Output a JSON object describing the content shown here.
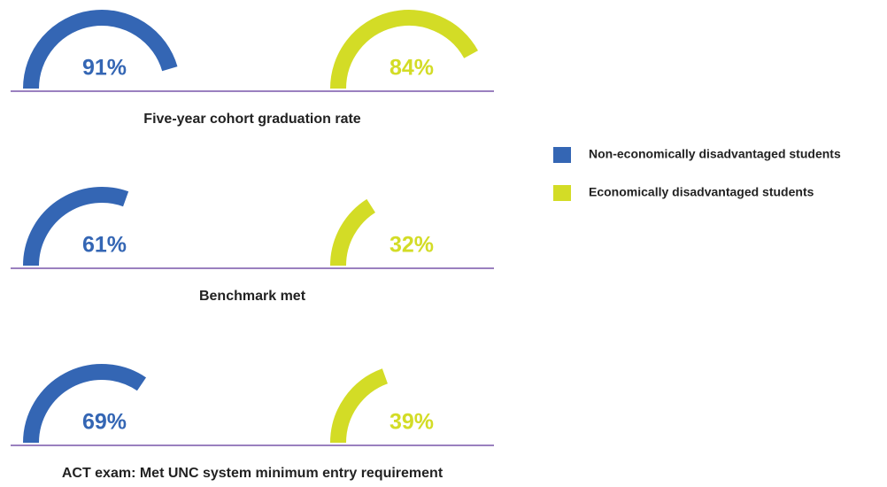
{
  "chart_data": {
    "type": "gauge",
    "categories": [
      "Five-year cohort graduation rate",
      "Benchmark met",
      "ACT exam: Met UNC system minimum entry requirement"
    ],
    "ylim": [
      0,
      100
    ],
    "series": [
      {
        "name": "Non-economically disadvantaged students",
        "color": "#3466b4",
        "values": [
          91,
          61,
          69
        ],
        "value_labels": [
          "91%",
          "61%",
          "69%"
        ]
      },
      {
        "name": "Economically disadvantaged students",
        "color": "#d3dc26",
        "values": [
          84,
          32,
          39
        ],
        "value_labels": [
          "84%",
          "32%",
          "39%"
        ]
      }
    ],
    "baseline_color": "#9a80bf"
  }
}
